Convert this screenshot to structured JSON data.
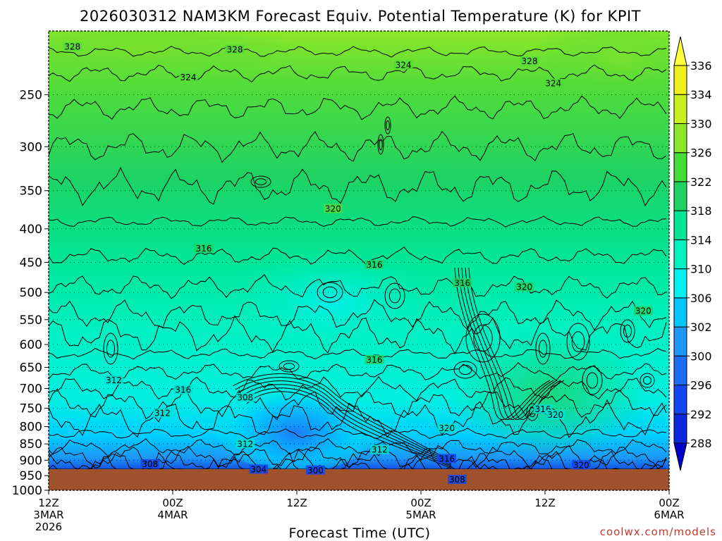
{
  "chart_data": {
    "type": "heatmap",
    "title": "2026030312 NAM3KM Forecast Equiv. Potential Temperature (K) for KPIT",
    "xlabel": "Forecast Time (UTC)",
    "ylabel": "",
    "y_scale": "log",
    "y_inverted": true,
    "y_ticks": [
      250,
      300,
      350,
      400,
      450,
      500,
      550,
      600,
      650,
      700,
      750,
      800,
      850,
      900,
      950,
      1000
    ],
    "ylim": [
      1000,
      200
    ],
    "x_ticks": [
      {
        "hour": 0,
        "lines": [
          "12Z",
          "3MAR",
          "2026"
        ]
      },
      {
        "hour": 12,
        "lines": [
          "00Z",
          "4MAR"
        ]
      },
      {
        "hour": 24,
        "lines": [
          "12Z"
        ]
      },
      {
        "hour": 36,
        "lines": [
          "00Z",
          "5MAR"
        ]
      },
      {
        "hour": 48,
        "lines": [
          "12Z"
        ]
      },
      {
        "hour": 60,
        "lines": [
          "00Z",
          "6MAR"
        ]
      }
    ],
    "xlim": [
      0,
      60
    ],
    "grid": true,
    "ground_color": "#a0522d",
    "colorbar": {
      "ticks": [
        288,
        292,
        296,
        300,
        302,
        306,
        310,
        314,
        318,
        322,
        326,
        330,
        334,
        336
      ],
      "colors": [
        "#0000c8",
        "#0a28dc",
        "#1446f0",
        "#1e6ef5",
        "#1e96f5",
        "#00c8ff",
        "#00f0f0",
        "#00f0c0",
        "#00e696",
        "#1ed264",
        "#46dc3c",
        "#8ce628",
        "#c8f01e",
        "#f0f01e",
        "#ffff3c"
      ]
    },
    "contour_labels": [
      {
        "value": "328",
        "hour": 2.3,
        "p": 212
      },
      {
        "value": "328",
        "hour": 18.0,
        "p": 214
      },
      {
        "value": "328",
        "hour": 46.5,
        "p": 223
      },
      {
        "value": "324",
        "hour": 13.5,
        "p": 236
      },
      {
        "value": "324",
        "hour": 34.3,
        "p": 226
      },
      {
        "value": "324",
        "hour": 48.8,
        "p": 241
      },
      {
        "value": "320",
        "hour": 27.5,
        "p": 374
      },
      {
        "value": "316",
        "hour": 15.0,
        "p": 430
      },
      {
        "value": "316",
        "hour": 31.5,
        "p": 455
      },
      {
        "value": "316",
        "hour": 40.0,
        "p": 485
      },
      {
        "value": "320",
        "hour": 46.0,
        "p": 492
      },
      {
        "value": "320",
        "hour": 57.5,
        "p": 535
      },
      {
        "value": "316",
        "hour": 31.5,
        "p": 635
      },
      {
        "value": "312",
        "hour": 6.3,
        "p": 682
      },
      {
        "value": "316",
        "hour": 13.0,
        "p": 705
      },
      {
        "value": "308",
        "hour": 19.0,
        "p": 725
      },
      {
        "value": "312",
        "hour": 11.0,
        "p": 765
      },
      {
        "value": "316",
        "hour": 47.8,
        "p": 755
      },
      {
        "value": "320",
        "hour": 49.0,
        "p": 770
      },
      {
        "value": "320",
        "hour": 38.5,
        "p": 807
      },
      {
        "value": "312",
        "hour": 19.0,
        "p": 853
      },
      {
        "value": "312",
        "hour": 32.0,
        "p": 870
      },
      {
        "value": "316",
        "hour": 38.5,
        "p": 898
      },
      {
        "value": "320",
        "hour": 51.5,
        "p": 918
      },
      {
        "value": "308",
        "hour": 9.8,
        "p": 915
      },
      {
        "value": "304",
        "hour": 20.3,
        "p": 932
      },
      {
        "value": "300",
        "hour": 25.8,
        "p": 935
      },
      {
        "value": "308",
        "hour": 39.5,
        "p": 966
      }
    ]
  },
  "credit": "coolwx.com/models"
}
